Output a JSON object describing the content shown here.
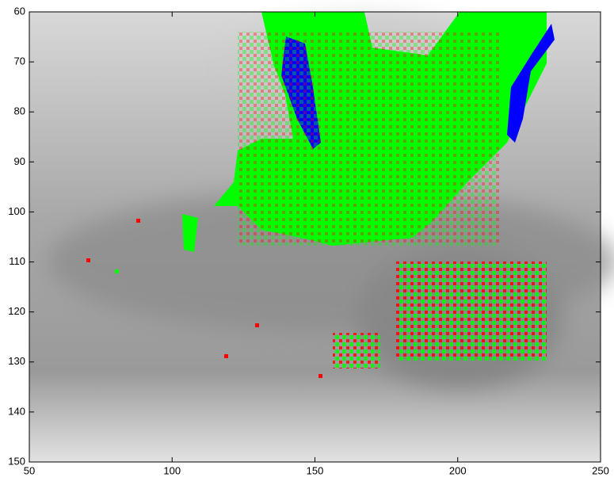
{
  "chart_data": {
    "type": "image",
    "xlim": [
      50,
      250
    ],
    "ylim": [
      150,
      60
    ],
    "xticks": [
      50,
      100,
      150,
      200,
      250
    ],
    "yticks": [
      60,
      70,
      80,
      90,
      100,
      110,
      120,
      130,
      140,
      150
    ]
  }
}
